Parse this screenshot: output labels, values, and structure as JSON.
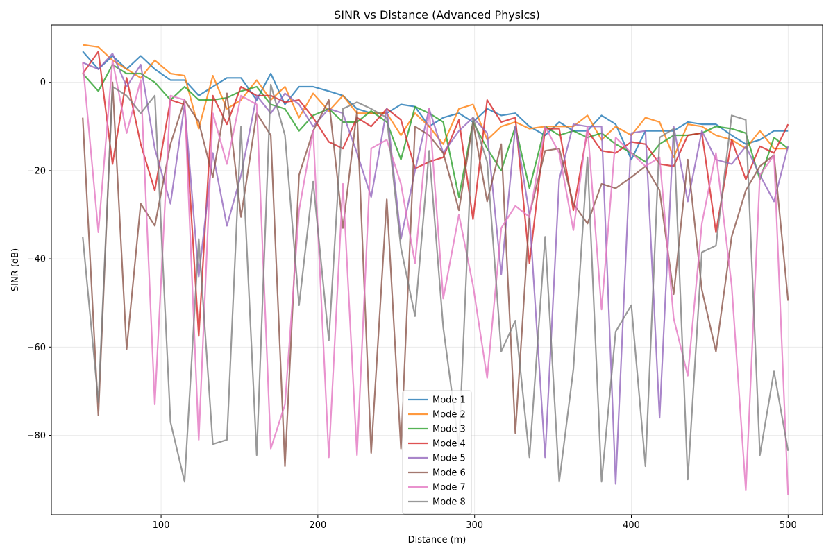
{
  "chart_data": {
    "type": "line",
    "title": "SINR vs Distance (Advanced Physics)",
    "xlabel": "Distance (m)",
    "ylabel": "SINR (dB)",
    "xlim": [
      30,
      522
    ],
    "ylim": [
      -98,
      13
    ],
    "xticks": [
      100,
      200,
      300,
      400,
      500
    ],
    "yticks": [
      -80,
      -60,
      -40,
      -20,
      0
    ],
    "grid": true,
    "legend_position": "lower-center",
    "x": [
      50,
      60,
      69,
      78,
      87,
      96,
      106,
      115,
      124,
      133,
      142,
      151,
      161,
      170,
      179,
      188,
      197,
      207,
      216,
      225,
      234,
      244,
      253,
      262,
      271,
      280,
      290,
      299,
      308,
      317,
      326,
      335,
      345,
      354,
      363,
      372,
      381,
      390,
      400,
      409,
      418,
      427,
      436,
      445,
      454,
      464,
      473,
      482,
      491,
      500
    ],
    "series": [
      {
        "name": "Mode 1",
        "color": "#1f77b4",
        "values": [
          7,
          3,
          6,
          3,
          6,
          3,
          0.5,
          0.5,
          -3,
          -1,
          1,
          1,
          -4,
          2,
          -5,
          -1,
          -1,
          -2,
          -3,
          -6,
          -7,
          -7,
          -5,
          -5.5,
          -10,
          -8,
          -7,
          -9,
          -6,
          -7.5,
          -7,
          -10,
          -12,
          -9,
          -11,
          -11,
          -7.5,
          -9.5,
          -17.5,
          -11,
          -11,
          -11,
          -9,
          -9.5,
          -9.5,
          -12,
          -14,
          -13,
          -11,
          -11
        ]
      },
      {
        "name": "Mode 2",
        "color": "#ff7f0e",
        "values": [
          8.5,
          8,
          5,
          3,
          1,
          5,
          2,
          1.5,
          -10.5,
          1.5,
          -6,
          -4,
          0.5,
          -4,
          -1,
          -8,
          -2.5,
          -6.5,
          -3,
          -7,
          -7,
          -7,
          -12,
          -7,
          -10,
          -14,
          -6,
          -5,
          -13,
          -10,
          -9,
          -10.5,
          -10,
          -10,
          -10,
          -7.5,
          -13,
          -10,
          -12,
          -8,
          -9,
          -17,
          -9.5,
          -10,
          -12,
          -13,
          -15,
          -11,
          -15,
          -15
        ]
      },
      {
        "name": "Mode 3",
        "color": "#2ca02c",
        "values": [
          2,
          -2,
          4,
          2,
          2,
          0,
          -4,
          -1,
          -4,
          -4,
          -3.5,
          -2,
          -1,
          -5,
          -6,
          -11,
          -7.5,
          -6,
          -9,
          -9,
          -6.5,
          -9,
          -17.5,
          -5.5,
          -7,
          -9,
          -26,
          -9,
          -15,
          -20,
          -10,
          -24,
          -10,
          -12,
          -11,
          -12.5,
          -11.5,
          -14,
          -16,
          -18,
          -14,
          -12,
          -12,
          -11.5,
          -10,
          -10.5,
          -11.5,
          -22,
          -12.5,
          -15
        ]
      },
      {
        "name": "Mode 4",
        "color": "#d62728",
        "values": [
          2,
          7,
          -18.5,
          1,
          -14,
          -24.5,
          -4,
          -5,
          -57.5,
          -3,
          -9.5,
          -1,
          -3,
          -3,
          -4.5,
          -4,
          -8,
          -13.5,
          -15,
          -8,
          -10,
          -6,
          -8.5,
          -19.5,
          -18,
          -17,
          -8.5,
          -31,
          -4,
          -9,
          -8,
          -41,
          -10.5,
          -10.5,
          -29,
          -11,
          -15.5,
          -16,
          -13.5,
          -14,
          -18.5,
          -19,
          -12,
          -11.5,
          -34,
          -13,
          -22,
          -14.5,
          -16,
          -9.5
        ]
      },
      {
        "name": "Mode 5",
        "color": "#9467bd",
        "values": [
          4.5,
          3,
          6.5,
          -1,
          4,
          -15,
          -27.5,
          -5,
          -44,
          -16,
          -32.5,
          -21,
          -3,
          -7,
          -2.5,
          -5,
          -10,
          -6,
          -7,
          -16,
          -26,
          -6,
          -35.5,
          -20,
          -6,
          -16,
          -11,
          -8,
          -11.5,
          -43.5,
          -10,
          -30,
          -85,
          -22,
          -9.5,
          -10,
          -10,
          -91,
          -11.5,
          -11,
          -76,
          -10,
          -27,
          -11,
          -17.5,
          -18.5,
          -14.5,
          -21,
          -27,
          -14.5
        ]
      },
      {
        "name": "Mode 6",
        "color": "#8c564b",
        "values": [
          -8,
          -75.5,
          0,
          -60.5,
          -27.5,
          -32.5,
          -14,
          -4,
          -9,
          -21.5,
          -2.5,
          -30.5,
          -7,
          -12,
          -87,
          -21,
          -11,
          -4,
          -33,
          -6.5,
          -84,
          -26.5,
          -83,
          -10,
          -12,
          -16,
          -29,
          -9,
          -27,
          -14,
          -79.5,
          -30,
          -15.5,
          -15,
          -27.5,
          -32,
          -23,
          -24,
          -21.5,
          -19,
          -24.5,
          -48,
          -17.5,
          -47,
          -61,
          -35,
          -24.5,
          -19,
          -16.5,
          -49.5
        ]
      },
      {
        "name": "Mode 7",
        "color": "#e377c2",
        "values": [
          4.5,
          -34,
          5,
          -11.5,
          0.5,
          -73,
          -3,
          -4,
          -81,
          -7,
          -18.5,
          -3,
          -5,
          -83,
          -73,
          -29,
          -11,
          -85,
          -23,
          -84.5,
          -15,
          -13,
          -23,
          -41,
          -6,
          -49,
          -30,
          -46,
          -67,
          -33,
          -28,
          -30.5,
          -10,
          -16,
          -33.5,
          -10,
          -51.5,
          -12.5,
          -16,
          -19,
          -17,
          -53.5,
          -66.5,
          -32,
          -16,
          -46,
          -92.5,
          -21,
          -16.5,
          -93.5
        ]
      },
      {
        "name": "Mode 8",
        "color": "#7f7f7f",
        "values": [
          -35,
          -72.5,
          -1,
          -3,
          -7,
          -3,
          -77,
          -90.5,
          -35.5,
          -82,
          -81,
          -10,
          -84.5,
          -0.5,
          -12,
          -50.5,
          -22.5,
          -58.5,
          -6,
          -4.5,
          -6,
          -8,
          -37.5,
          -53,
          -15.5,
          -55.5,
          -82.5,
          -8,
          -18,
          -61,
          -54,
          -85,
          -35,
          -90.5,
          -65,
          -17,
          -90.5,
          -56.5,
          -50.5,
          -87,
          -12.5,
          -10.5,
          -90,
          -38.5,
          -37,
          -7.5,
          -8.5,
          -84.5,
          -65.5,
          -83.5
        ]
      }
    ]
  }
}
